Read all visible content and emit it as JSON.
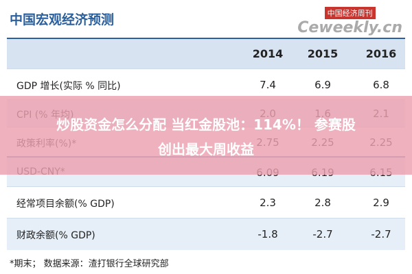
{
  "header": {
    "title": "中国宏观经济预测",
    "watermark_cn": "中国经济周刊",
    "watermark_en": "Ceweekly.cn"
  },
  "table": {
    "columns": [
      "2014",
      "2015",
      "2016"
    ],
    "rows": [
      {
        "label": "GDP 增长(实际 % 同比)",
        "values": [
          "7.4",
          "6.9",
          "6.8"
        ]
      },
      {
        "label": "CPI (% 年均)",
        "values": [
          "2.0",
          "1.6",
          "2.1"
        ]
      },
      {
        "label": "政策利率(%)*",
        "values": [
          "2.75",
          "2.25",
          "2.25"
        ]
      },
      {
        "label": "USD-CNY*",
        "values": [
          "6.09",
          "6.19",
          "6.15"
        ]
      },
      {
        "label": "经常项目余额(% GDP)",
        "values": [
          "2.3",
          "2.8",
          "2.9"
        ]
      },
      {
        "label": "财政余额(% GDP)",
        "values": [
          "-1.8",
          "-2.7",
          "-2.7"
        ]
      }
    ]
  },
  "footnote": "*期末；    数据来源：渣打银行全球研究部",
  "overlay": {
    "line1": "炒股资金怎么分配 当红金股池：114%！ 参赛股",
    "line2": "创出最大周收益"
  }
}
